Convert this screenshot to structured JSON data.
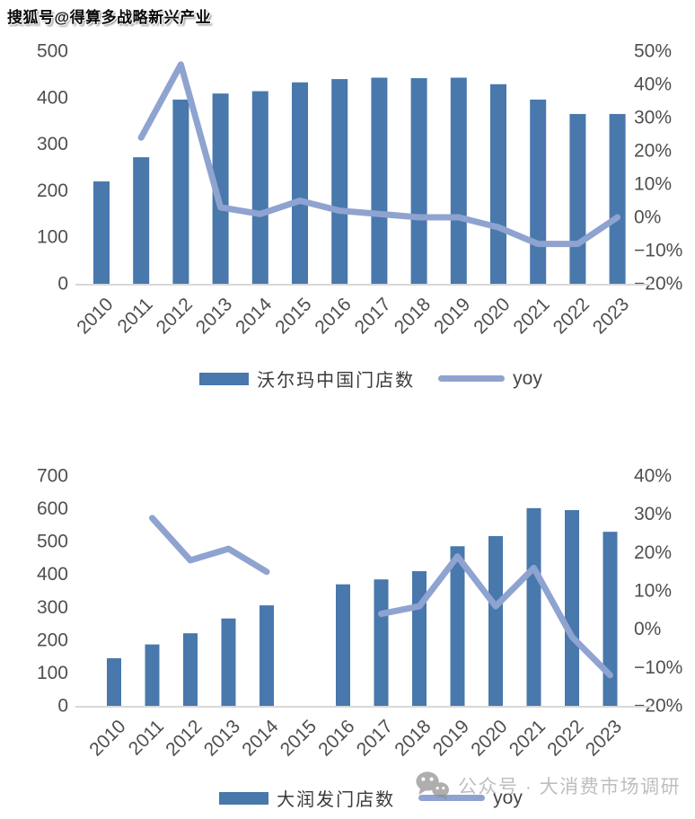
{
  "watermark_header": "搜狐号@得算多战略新兴产业",
  "footer_watermark": {
    "icon": "wechat-icon",
    "text": "公众号 · 大消费市场调研"
  },
  "colors": {
    "bar": "#4878AC",
    "line": "#8FA3D0",
    "axis_text": "#4F4F4F",
    "baseline": "#D8D8D8",
    "watermark_gray": "#969696"
  },
  "chart_data": [
    {
      "type": "bar",
      "title": "",
      "categories": [
        "2010",
        "2011",
        "2012",
        "2013",
        "2014",
        "2015",
        "2016",
        "2017",
        "2018",
        "2019",
        "2020",
        "2021",
        "2022",
        "2023"
      ],
      "series": [
        {
          "name": "沃尔玛中国门店数",
          "kind": "bar",
          "axis": "left",
          "values": [
            220,
            272,
            396,
            409,
            414,
            433,
            440,
            443,
            442,
            443,
            429,
            396,
            365,
            365
          ]
        },
        {
          "name": "yoy",
          "kind": "line",
          "axis": "right",
          "values": [
            null,
            24,
            46,
            3,
            1,
            5,
            2,
            1,
            0,
            0,
            -3,
            -8,
            -8,
            0
          ]
        }
      ],
      "left_axis": {
        "min": 0,
        "max": 500,
        "step": 100
      },
      "right_axis": {
        "min": -20,
        "max": 50,
        "step": 10,
        "suffix": "%"
      },
      "grid": false,
      "legend_position": "bottom"
    },
    {
      "type": "bar",
      "title": "",
      "categories": [
        "2010",
        "2011",
        "2012",
        "2013",
        "2014",
        "2015",
        "2016",
        "2017",
        "2018",
        "2019",
        "2020",
        "2021",
        "2022",
        "2023"
      ],
      "series": [
        {
          "name": "大润发门店数",
          "kind": "bar",
          "axis": "left",
          "values": [
            145,
            187,
            221,
            266,
            306,
            null,
            370,
            385,
            410,
            486,
            517,
            602,
            596,
            530
          ]
        },
        {
          "name": "yoy",
          "kind": "line",
          "axis": "right",
          "values": [
            null,
            29,
            18,
            21,
            15,
            null,
            null,
            4,
            6,
            19,
            6,
            16,
            -2,
            -12
          ]
        }
      ],
      "left_axis": {
        "min": 0,
        "max": 700,
        "step": 100
      },
      "right_axis": {
        "min": -20,
        "max": 40,
        "step": 10,
        "suffix": "%"
      },
      "grid": false,
      "legend_position": "bottom"
    }
  ]
}
